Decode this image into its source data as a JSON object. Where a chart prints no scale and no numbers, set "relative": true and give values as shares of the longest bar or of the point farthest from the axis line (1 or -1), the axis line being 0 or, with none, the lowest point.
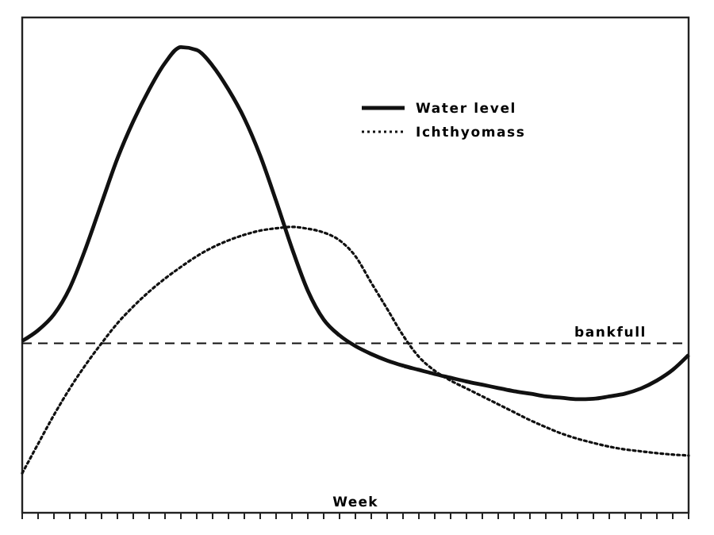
{
  "chart_data": {
    "type": "line",
    "xlabel": "Week",
    "relative": true,
    "legend": "top right",
    "marker": "none",
    "categories": [
      null,
      null,
      null,
      null,
      null,
      null,
      null,
      null,
      null,
      null,
      null,
      null,
      null,
      null,
      null,
      null,
      null,
      null,
      null,
      null,
      null,
      null,
      null,
      null,
      null,
      null,
      null,
      null,
      null,
      null,
      null,
      null,
      null,
      null,
      null,
      null,
      null,
      null,
      null,
      null,
      null,
      null,
      null
    ],
    "series": [
      {
        "name": "Water level",
        "color": "#111111",
        "line_style": "solid",
        "values": [
          0.369,
          0.392,
          0.426,
          0.483,
          0.568,
          0.665,
          0.761,
          0.841,
          0.909,
          0.966,
          1,
          0.994,
          0.96,
          0.909,
          0.847,
          0.767,
          0.67,
          0.568,
          0.477,
          0.415,
          0.381,
          0.358,
          0.341,
          0.327,
          0.316,
          0.307,
          0.298,
          0.29,
          0.282,
          0.275,
          0.268,
          0.261,
          0.256,
          0.25,
          0.247,
          0.244,
          0.245,
          0.25,
          0.256,
          0.267,
          0.284,
          0.307,
          0.339
        ]
      },
      {
        "name": "Ichthyomass",
        "color": "#111111",
        "line_style": "dotted",
        "values": [
          0.085,
          0.148,
          0.21,
          0.267,
          0.318,
          0.364,
          0.407,
          0.443,
          0.475,
          0.503,
          0.528,
          0.551,
          0.57,
          0.585,
          0.597,
          0.606,
          0.611,
          0.614,
          0.61,
          0.602,
          0.585,
          0.551,
          0.494,
          0.438,
          0.381,
          0.335,
          0.305,
          0.284,
          0.267,
          0.25,
          0.233,
          0.216,
          0.199,
          0.184,
          0.17,
          0.159,
          0.15,
          0.142,
          0.136,
          0.132,
          0.128,
          0.125,
          0.123
        ]
      }
    ],
    "ref_lines": [
      {
        "axis": "y",
        "value": 0.364,
        "label": "bankfull",
        "line_style": "dashed",
        "color": "#111111"
      }
    ]
  }
}
